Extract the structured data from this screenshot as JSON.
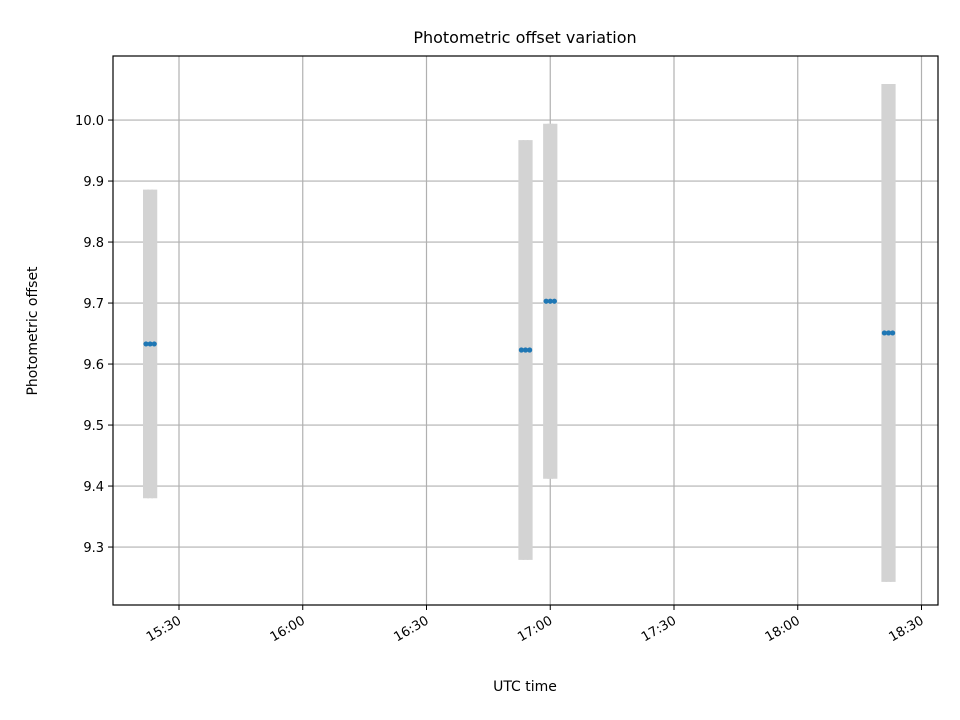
{
  "chart_data": {
    "type": "scatter",
    "title": "Photometric offset variation",
    "xlabel": "UTC time",
    "ylabel": "Photometric offset",
    "x_axis_type": "time",
    "xlim": [
      "15:14",
      "18:34"
    ],
    "ylim": [
      9.205,
      10.105
    ],
    "grid": true,
    "x_ticks": [
      "15:30",
      "16:00",
      "16:30",
      "17:00",
      "17:30",
      "18:00",
      "18:30"
    ],
    "y_ticks": [
      "9.3",
      "9.4",
      "9.5",
      "9.6",
      "9.7",
      "9.8",
      "9.9",
      "10.0"
    ],
    "y_tick_values": [
      9.3,
      9.4,
      9.5,
      9.6,
      9.7,
      9.8,
      9.9,
      10.0
    ],
    "series": [
      {
        "marker_color": "#1f77b4",
        "error_bar_color": "#d3d3d3",
        "points": [
          {
            "x": "15:22",
            "y": 9.633,
            "yerr": 0.253
          },
          {
            "x": "15:23",
            "y": 9.633,
            "yerr": 0.253
          },
          {
            "x": "15:24",
            "y": 9.633,
            "yerr": 0.253
          },
          {
            "x": "16:53",
            "y": 9.623,
            "yerr": 0.344
          },
          {
            "x": "16:54",
            "y": 9.623,
            "yerr": 0.344
          },
          {
            "x": "16:55",
            "y": 9.623,
            "yerr": 0.344
          },
          {
            "x": "16:59",
            "y": 9.703,
            "yerr": 0.291
          },
          {
            "x": "17:00",
            "y": 9.703,
            "yerr": 0.291
          },
          {
            "x": "17:01",
            "y": 9.703,
            "yerr": 0.291
          },
          {
            "x": "18:21",
            "y": 9.651,
            "yerr": 0.408
          },
          {
            "x": "18:22",
            "y": 9.651,
            "yerr": 0.408
          },
          {
            "x": "18:23",
            "y": 9.651,
            "yerr": 0.408
          }
        ]
      }
    ]
  }
}
